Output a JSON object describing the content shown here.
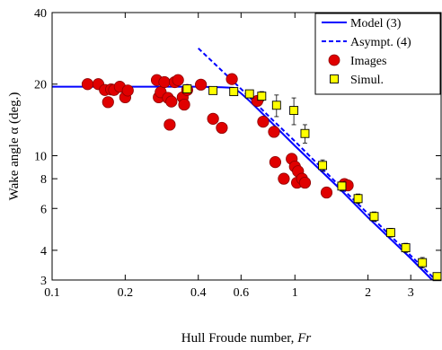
{
  "chart_data": {
    "type": "scatter",
    "xlabel": "Hull Froude number, ",
    "xlabel_var": "Fr",
    "ylabel": "Wake angle  α (deg.)",
    "x_scale": "log",
    "y_scale": "log",
    "xlim": [
      0.1,
      4
    ],
    "ylim": [
      3,
      40
    ],
    "x_ticks": [
      0.1,
      0.2,
      0.4,
      0.6,
      1,
      2,
      3
    ],
    "x_tick_labels": [
      "0.1",
      "0.2",
      "0.4",
      "0.6",
      "1",
      "2",
      "3"
    ],
    "y_ticks": [
      3,
      4,
      6,
      8,
      10,
      20,
      40
    ],
    "y_tick_labels": [
      "3",
      "4",
      "6",
      "8",
      "10",
      "20",
      "40"
    ],
    "grid": false,
    "legend_position": "top-right",
    "legend": [
      {
        "label": "Model (3)",
        "style": "solid-line"
      },
      {
        "label": "Asympt. (4)",
        "style": "dashed-line"
      },
      {
        "label": "Images",
        "style": "red-circle"
      },
      {
        "label": "Simul.",
        "style": "yellow-square"
      }
    ],
    "colors": {
      "model": "#0000ff",
      "asymptote": "#0000ff",
      "images_fill": "#e00000",
      "images_edge": "#8b0000",
      "simul_fill": "#ffff00",
      "simul_edge": "#000000"
    },
    "series": [
      {
        "name": "Model (3)",
        "type": "line",
        "x": [
          0.1,
          0.2,
          0.3,
          0.4,
          0.5,
          0.56,
          0.6,
          0.65,
          0.7,
          0.8,
          1.0,
          1.5,
          2.0,
          3.0,
          4.0
        ],
        "y": [
          19.5,
          19.5,
          19.5,
          19.5,
          19.4,
          19.3,
          18.3,
          17.0,
          15.8,
          13.8,
          11.0,
          7.4,
          5.5,
          3.7,
          2.75
        ]
      },
      {
        "name": "Asympt. (4)",
        "type": "dashed-line",
        "x": [
          0.4,
          0.6,
          0.8,
          1.0,
          1.5,
          2.0,
          3.0,
          4.0
        ],
        "y": [
          28.3,
          19.1,
          14.3,
          11.5,
          7.6,
          5.7,
          3.8,
          2.85
        ]
      },
      {
        "name": "Images",
        "type": "scatter",
        "x": [
          0.14,
          0.155,
          0.165,
          0.17,
          0.175,
          0.18,
          0.19,
          0.2,
          0.205,
          0.27,
          0.275,
          0.28,
          0.29,
          0.3,
          0.305,
          0.31,
          0.32,
          0.33,
          0.345,
          0.35,
          0.36,
          0.41,
          0.46,
          0.5,
          0.55,
          0.7,
          0.74,
          0.82,
          0.83,
          0.9,
          0.97,
          1.0,
          1.02,
          1.03,
          1.07,
          1.1,
          1.35,
          1.6,
          1.65
        ],
        "y": [
          20.0,
          20.0,
          18.9,
          16.8,
          19.0,
          18.9,
          19.5,
          17.6,
          18.8,
          20.8,
          17.6,
          18.5,
          20.4,
          17.5,
          13.5,
          16.9,
          20.4,
          20.8,
          17.6,
          16.4,
          18.9,
          19.9,
          14.3,
          13.1,
          21.0,
          17.0,
          13.9,
          12.6,
          9.4,
          8.0,
          9.7,
          9.0,
          7.7,
          8.6,
          8.0,
          7.7,
          7.0,
          7.6,
          7.5
        ]
      },
      {
        "name": "Simul.",
        "type": "scatter",
        "x": [
          0.36,
          0.46,
          0.56,
          0.65,
          0.73,
          0.84,
          0.99,
          1.1,
          1.3,
          1.56,
          1.82,
          2.12,
          2.48,
          2.86,
          3.35,
          3.85
        ],
        "y": [
          19.1,
          18.8,
          18.6,
          18.2,
          17.8,
          16.3,
          15.5,
          12.4,
          9.1,
          7.45,
          6.6,
          5.55,
          4.75,
          4.1,
          3.55,
          3.1
        ],
        "err": [
          0,
          0,
          0,
          0,
          0.8,
          1.7,
          2.0,
          1.1,
          0.5,
          0.35,
          0.3,
          0.25,
          0.2,
          0.18,
          0.18,
          0
        ]
      }
    ]
  }
}
